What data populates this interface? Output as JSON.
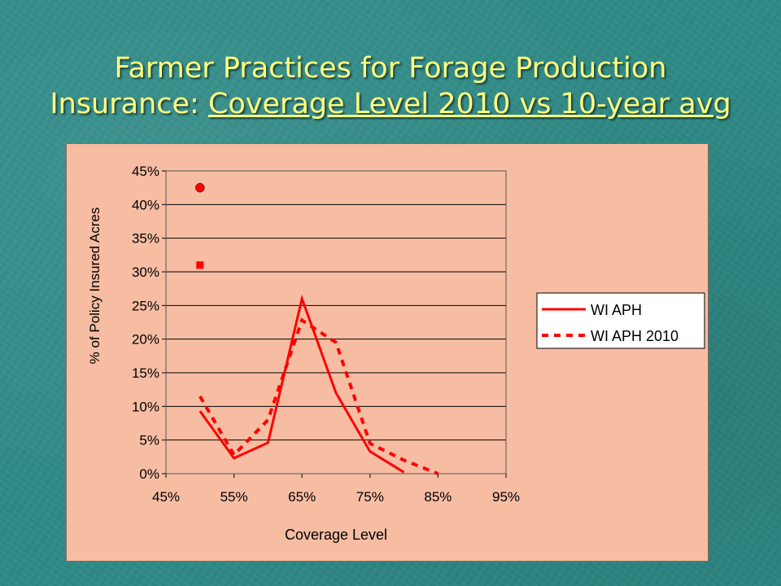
{
  "title": {
    "line1": "Farmer Practices for Forage Production",
    "line2_prefix": "Insurance: ",
    "line2_underlined": "Coverage Level 2010 vs 10-year avg"
  },
  "colors": {
    "series": "#ff0000",
    "background": "#2f8a86",
    "plot_bg": "#f7bda3",
    "title": "#ffff80"
  },
  "chart_data": {
    "type": "line",
    "title": "",
    "xlabel": "Coverage Level",
    "ylabel": "% of Policy Insured Acres",
    "xlim": [
      0.45,
      0.95
    ],
    "ylim": [
      0,
      0.45
    ],
    "xticks": [
      0.45,
      0.55,
      0.65,
      0.75,
      0.85,
      0.95
    ],
    "xtick_labels": [
      "45%",
      "55%",
      "65%",
      "75%",
      "85%",
      "95%"
    ],
    "yticks": [
      0,
      0.05,
      0.1,
      0.15,
      0.2,
      0.25,
      0.3,
      0.35,
      0.4,
      0.45
    ],
    "ytick_labels": [
      "0%",
      "5%",
      "10%",
      "15%",
      "20%",
      "25%",
      "30%",
      "35%",
      "40%",
      "45%"
    ],
    "grid": "horizontal",
    "legend": "right",
    "series": [
      {
        "name": "WI APH",
        "style": "solid",
        "x": [
          0.5,
          0.55,
          0.6,
          0.65,
          0.7,
          0.75,
          0.8
        ],
        "y": [
          0.093,
          0.023,
          0.046,
          0.26,
          0.12,
          0.033,
          0.002
        ]
      },
      {
        "name": "WI APH 2010",
        "style": "dashed",
        "x": [
          0.5,
          0.55,
          0.6,
          0.65,
          0.7,
          0.75,
          0.8,
          0.85
        ],
        "y": [
          0.115,
          0.028,
          0.08,
          0.228,
          0.195,
          0.045,
          0.02,
          0.0
        ]
      }
    ],
    "extra_points": [
      {
        "shape": "circle",
        "x": 0.5,
        "y": 0.425
      },
      {
        "shape": "square",
        "x": 0.5,
        "y": 0.31
      }
    ]
  }
}
